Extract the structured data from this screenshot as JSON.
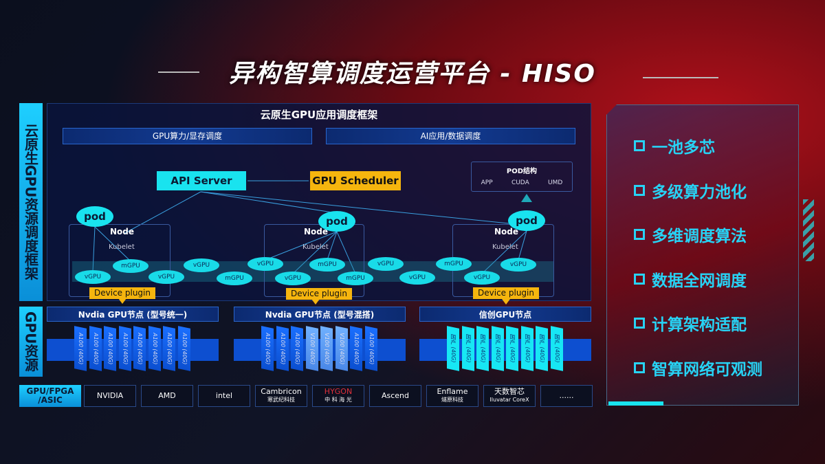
{
  "title": "异构智算调度运营平台 - HISO",
  "left_label_top": "云原生GPU资源调度框架",
  "left_label_bottom": "GPU资源",
  "framework": {
    "title": "云原生GPU应用调度框架",
    "bar1": "GPU算力/显存调度",
    "bar2": "AI应用/数据调度"
  },
  "api_server": "API Server",
  "gpu_scheduler": "GPU Scheduler",
  "pod_structure": {
    "title": "POD结构",
    "items": [
      "APP",
      "CUDA",
      "UMD"
    ]
  },
  "pod": "pod",
  "node": "Node",
  "kubelet": "Kubelet",
  "device_plugin": "Device plugin",
  "gpu_units": [
    "vGPU",
    "mGPU",
    "vGPU",
    "vGPU",
    "mGPU",
    "vGPU",
    "vGPU",
    "mGPU",
    "mGPU",
    "vGPU",
    "vGPU",
    "mGPU",
    "vGPU",
    "vGPU"
  ],
  "gpu_nodes": [
    {
      "title": "Nvdia GPU节点 (型号统一)",
      "chips": [
        "A100 (40G)",
        "A100 (40G)",
        "A100 (40G)",
        "A100 (40G)",
        "A100 (40G)",
        "A100 (40G)",
        "A100 (40G)",
        "A100 (40G)"
      ]
    },
    {
      "title": "Nvdia GPU节点 (型号混搭)",
      "chips": [
        "A100 (40G)",
        "A100 (40G)",
        "A100 (40G)",
        "V100 (40G)",
        "V100 (40G)",
        "V100 (40G)",
        "A100 (40G)",
        "A100 (40G)"
      ]
    },
    {
      "title": "信创GPU节点",
      "chips": [
        "国产 (40G)",
        "国产 (40G)",
        "国产 (40G)",
        "国产 (40G)",
        "国产 (40G)",
        "国产 (40G)",
        "国产 (40G)",
        "国产 (40G)"
      ]
    }
  ],
  "vendors_label": "GPU/FPGA /ASIC",
  "vendors": [
    {
      "name": "NVIDIA",
      "sub": ""
    },
    {
      "name": "AMD",
      "sub": ""
    },
    {
      "name": "intel",
      "sub": ""
    },
    {
      "name": "Cambricon",
      "sub": "寒武纪科技"
    },
    {
      "name": "HYGON",
      "sub": "中 科 海 光"
    },
    {
      "name": "Ascend",
      "sub": ""
    },
    {
      "name": "Enflame",
      "sub": "燧原科技"
    },
    {
      "name": "天数智芯",
      "sub": "Iluvatar CoreX"
    },
    {
      "name": "......",
      "sub": ""
    }
  ],
  "features": [
    "一池多芯",
    "多级算力池化",
    "多维调度算法",
    "数据全网调度",
    "计算架构适配",
    "智算网络可观测"
  ],
  "colors": {
    "cyan": "#19e3ef",
    "yellow": "#f5b50e",
    "blue": "#0d4fd0",
    "red": "#b0101a"
  }
}
